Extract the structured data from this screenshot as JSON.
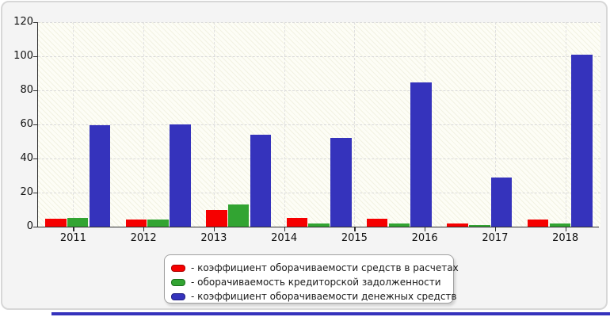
{
  "chart_data": {
    "type": "bar",
    "title": "",
    "categories": [
      "2011",
      "2012",
      "2013",
      "2014",
      "2015",
      "2016",
      "2017",
      "2018"
    ],
    "y_ticks": [
      0,
      20,
      40,
      60,
      80,
      100,
      120
    ],
    "ylim": [
      0,
      120
    ],
    "grid": "dashed horizontal and vertical",
    "legend_position": "bottom-center",
    "bar_group_count": 7,
    "layout_note": "7 bar groups are spread evenly across the plot width while 8 year ticks are evenly spaced, so mid-chart groups sit to the right of their year tick",
    "series": [
      {
        "name": "- коэффициент оборачиваемости средств в расчетах",
        "color": "#f60000",
        "border_color": "#aa0000",
        "values": [
          4.5,
          4,
          10,
          5,
          4.5,
          2,
          4
        ]
      },
      {
        "name": "- оборачиваемость кредиторской задолженности",
        "color": "#32a432",
        "border_color": "#1d711d",
        "values": [
          5,
          4,
          13,
          2,
          2,
          1,
          2
        ]
      },
      {
        "name": "- коэффициент оборачиваемости денежных средств",
        "color": "#3533bc",
        "border_color": "#232182",
        "values": [
          59.5,
          60,
          54,
          52,
          84.5,
          29,
          101
        ]
      }
    ]
  },
  "colors": {
    "card_background": "#f4f4f4",
    "card_border": "#d7d7d7",
    "plot_background": "#fdfdf6",
    "plot_hatch": "#f2f2e2",
    "grid_h": "#d9d9d9",
    "grid_v": "#e0e0e0",
    "axis": "#2f2f2f",
    "tick_text": "#111111",
    "legend_border": "#a0a0a0",
    "legend_text": "#1a1a1a",
    "bottom_strip": "#3533bc"
  }
}
